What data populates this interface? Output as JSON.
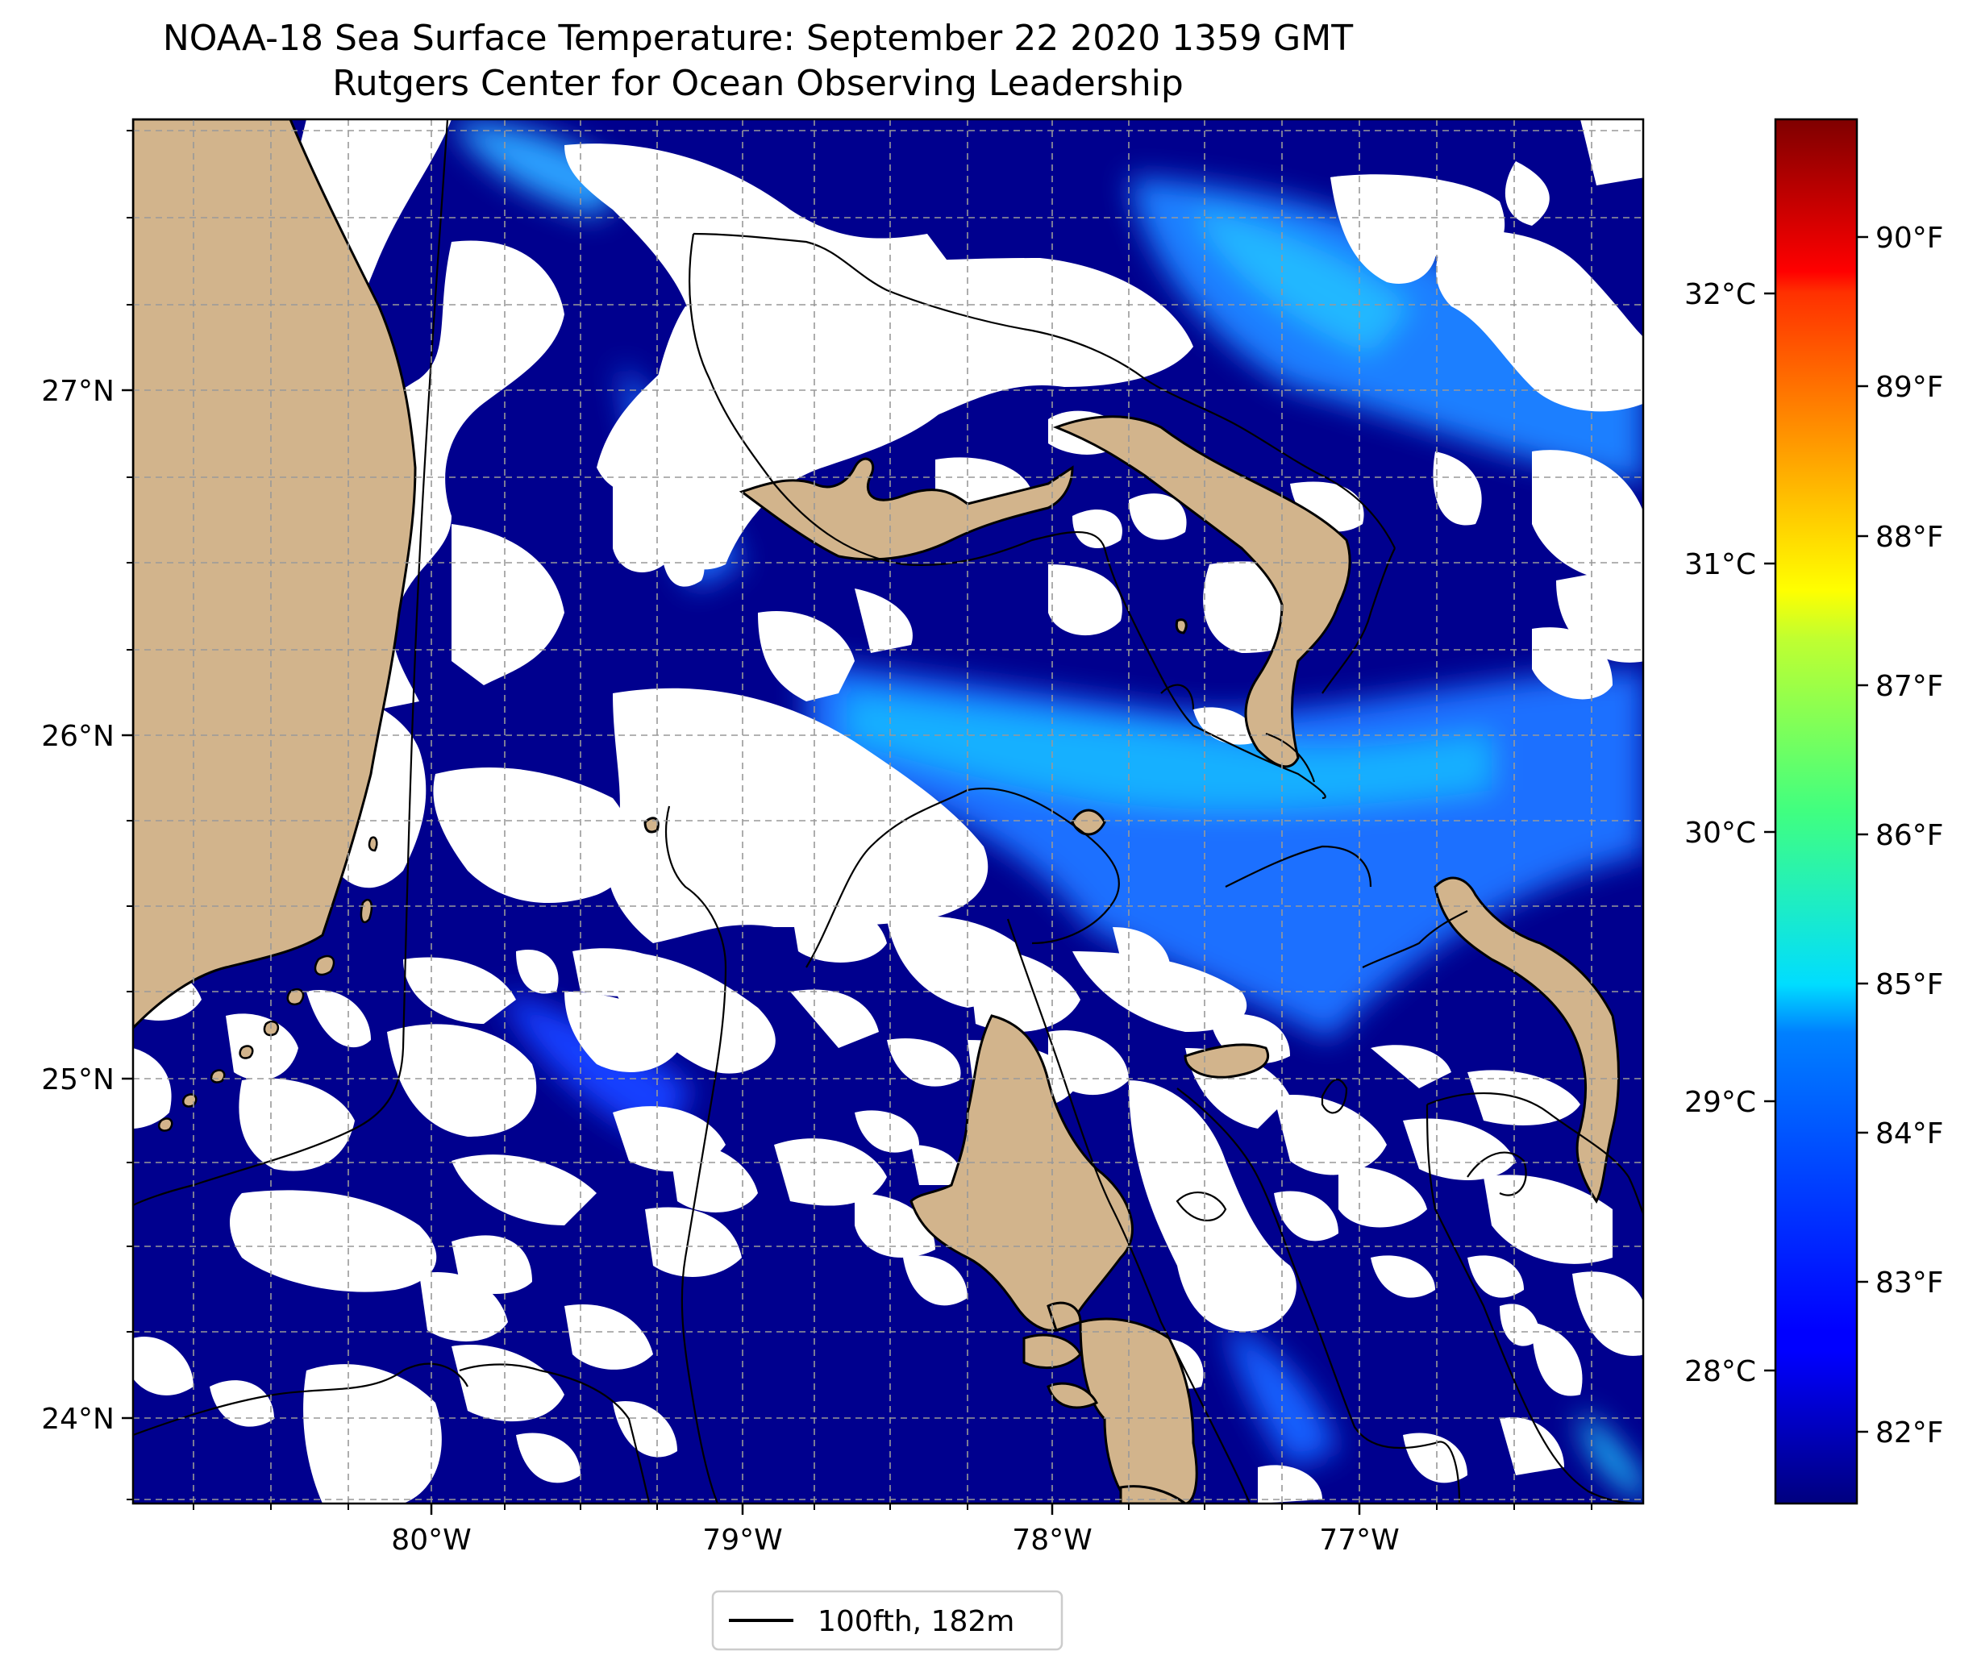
{
  "title": {
    "line1": "NOAA-18 Sea Surface Temperature: September 22 2020 1359 GMT",
    "line2": "Rutgers Center for Ocean Observing Leadership"
  },
  "map": {
    "lon_range": [
      -80.95,
      -76.1
    ],
    "lat_range": [
      23.75,
      27.8
    ],
    "lat_ticks": [
      {
        "value": 27,
        "label": "27°N"
      },
      {
        "value": 26,
        "label": "26°N"
      },
      {
        "value": 25,
        "label": "25°N"
      },
      {
        "value": 24,
        "label": "24°N"
      }
    ],
    "lon_ticks": [
      {
        "value": -80,
        "label": "80°W"
      },
      {
        "value": -79,
        "label": "79°W"
      },
      {
        "value": -78,
        "label": "78°W"
      },
      {
        "value": -77,
        "label": "77°W"
      }
    ],
    "gridlines": true,
    "land_color": "#D2B48C",
    "cloud_color": "#FFFFFF"
  },
  "colorbar": {
    "colormap": "jet",
    "celsius_ticks": [
      {
        "value": 32,
        "label": "32°C"
      },
      {
        "value": 31,
        "label": "31°C"
      },
      {
        "value": 30,
        "label": "30°C"
      },
      {
        "value": 29,
        "label": "29°C"
      },
      {
        "value": 28,
        "label": "28°C"
      }
    ],
    "fahrenheit_ticks": [
      {
        "value": 90,
        "label": "90°F"
      },
      {
        "value": 89,
        "label": "89°F"
      },
      {
        "value": 88,
        "label": "88°F"
      },
      {
        "value": 87,
        "label": "87°F"
      },
      {
        "value": 86,
        "label": "86°F"
      },
      {
        "value": 85,
        "label": "85°F"
      },
      {
        "value": 84,
        "label": "84°F"
      },
      {
        "value": 83,
        "label": "83°F"
      },
      {
        "value": 82,
        "label": "82°F"
      }
    ],
    "range_f": [
      81.5,
      90.8
    ]
  },
  "legend": {
    "label": "100fth, 182m"
  }
}
